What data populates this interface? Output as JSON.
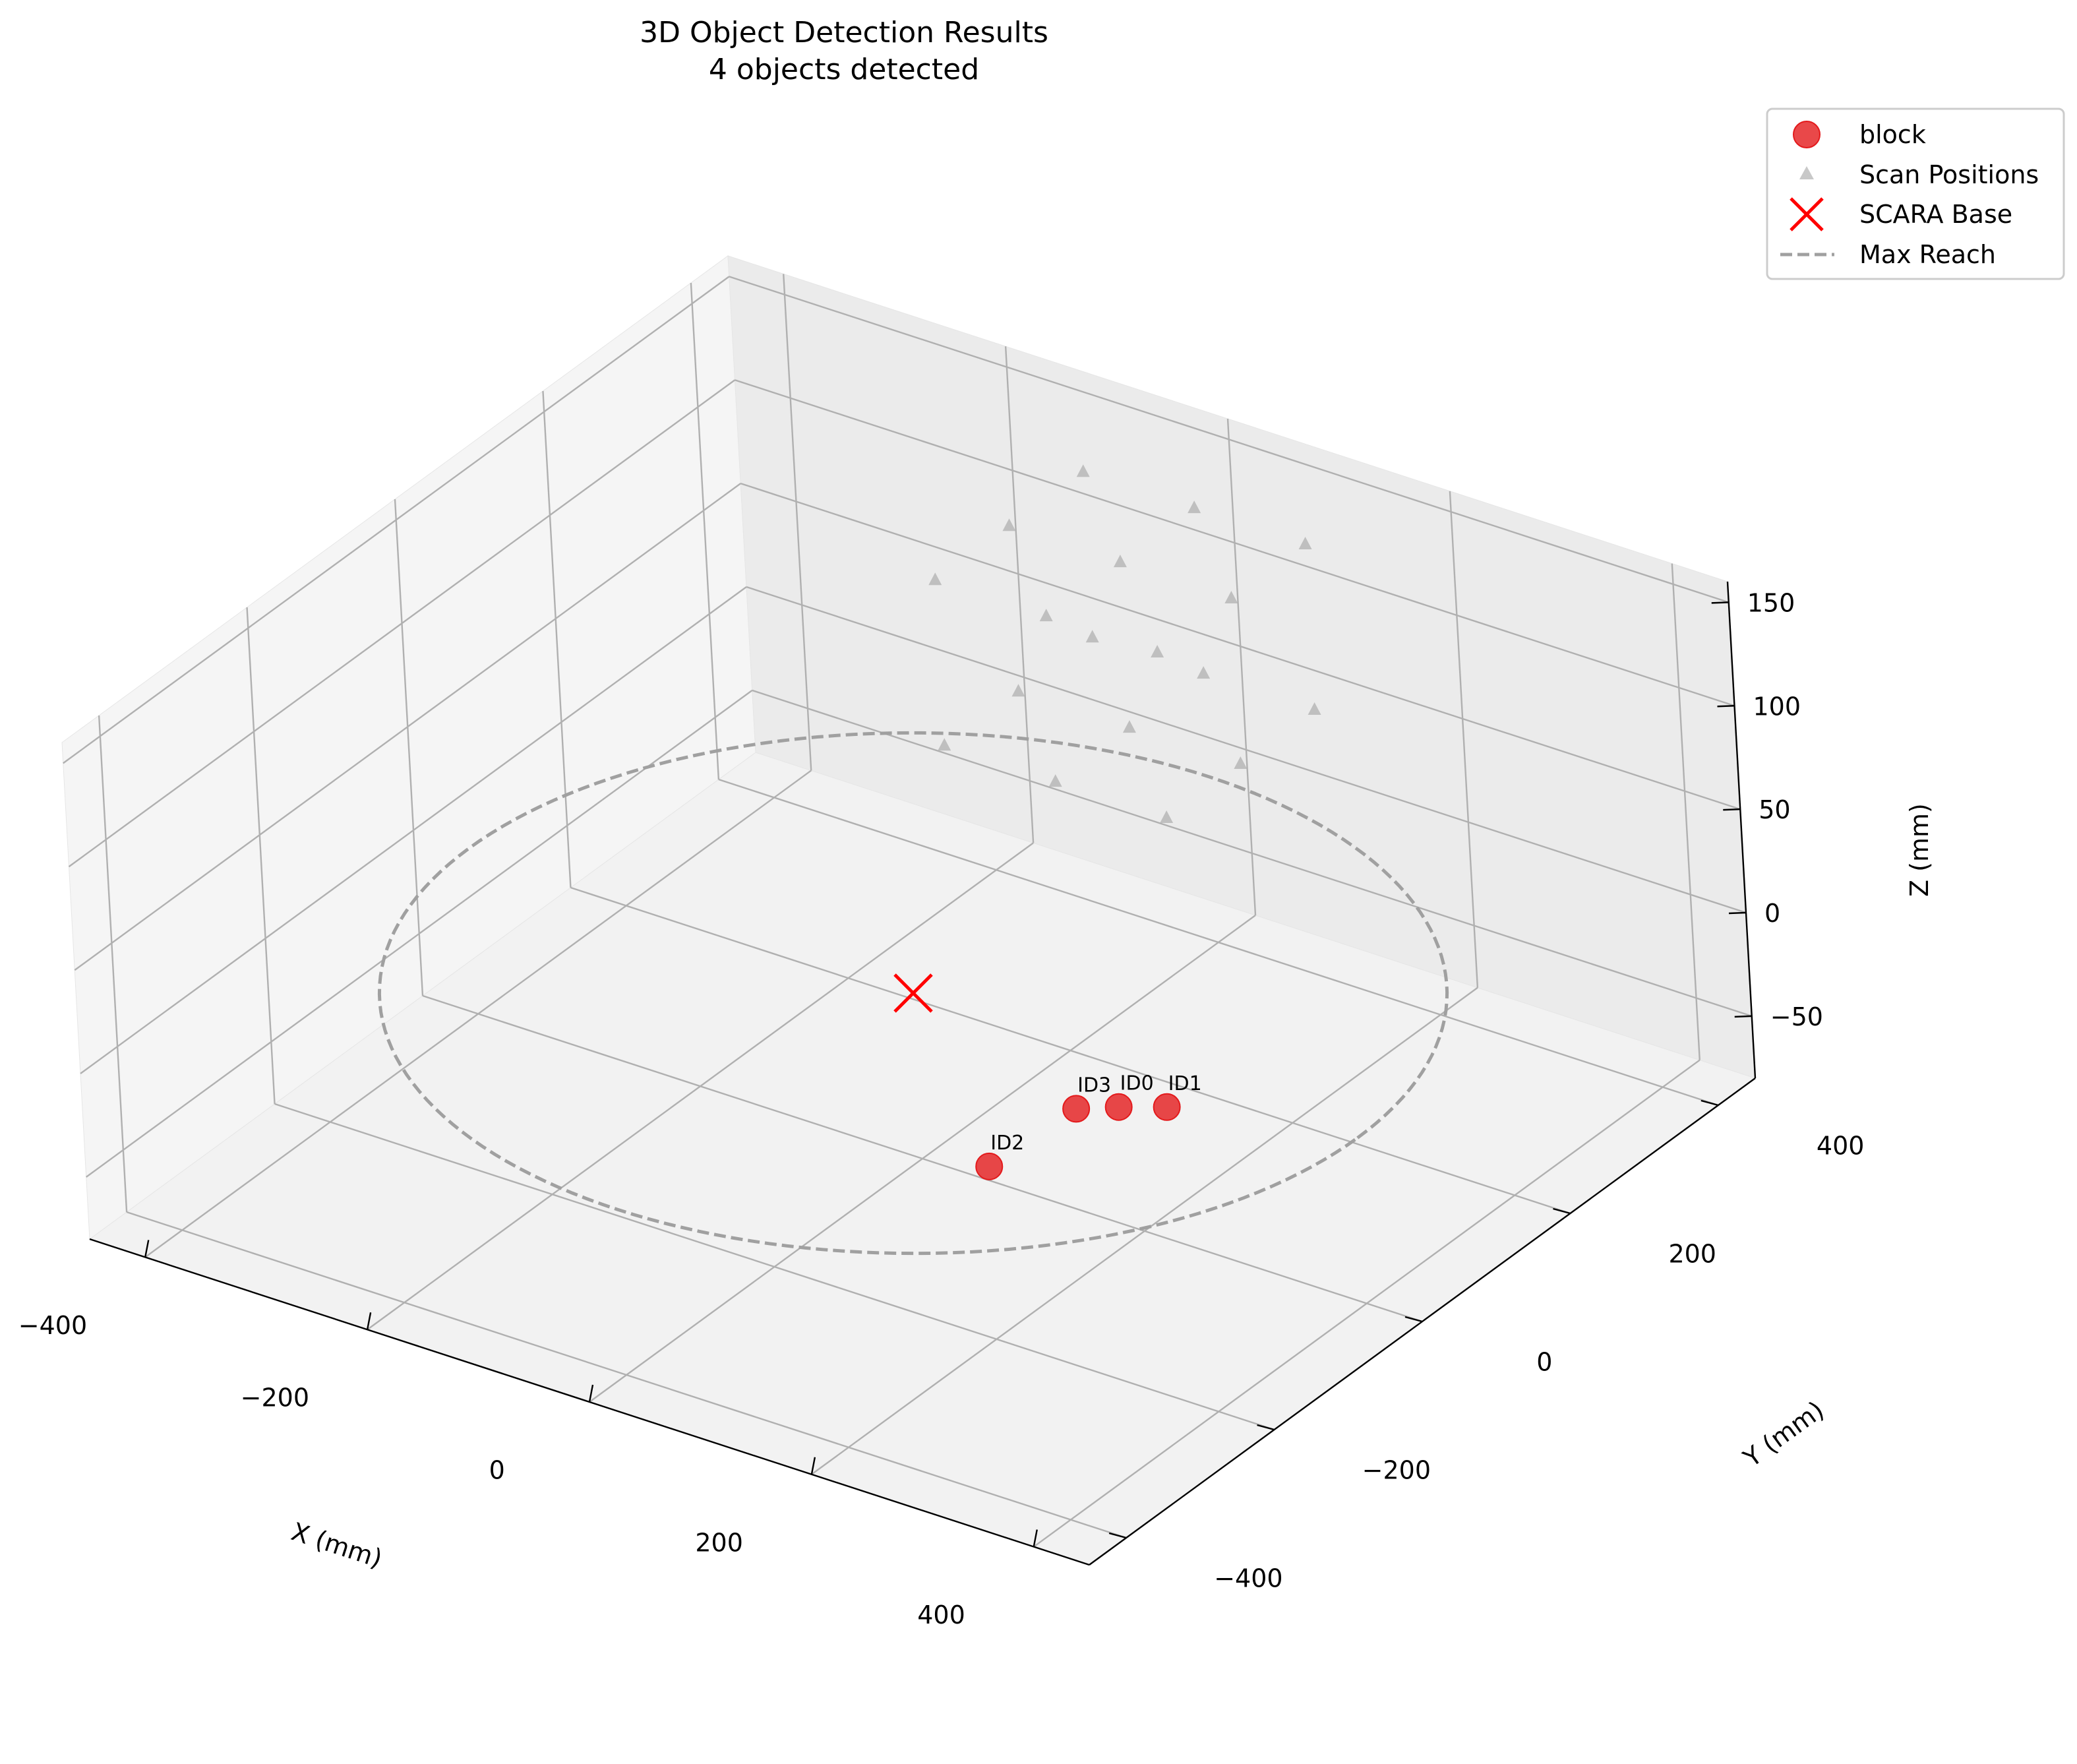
{
  "chart_data": {
    "type": "scatter",
    "projection": "3d",
    "title": "3D Object Detection Results",
    "subtitle": "4 objects detected",
    "xlabel": "X (mm)",
    "ylabel": "Y (mm)",
    "zlabel": "Z (mm)",
    "xlim": [
      -450,
      450
    ],
    "ylim": [
      -450,
      450
    ],
    "zlim": [
      -80,
      160
    ],
    "xticks": [
      -400,
      -200,
      0,
      200,
      400
    ],
    "yticks": [
      -400,
      -200,
      0,
      200,
      400
    ],
    "zticks": [
      -50,
      0,
      50,
      100,
      150
    ],
    "xtick_labels": [
      "−400",
      "−200",
      "0",
      "200",
      "400"
    ],
    "ytick_labels": [
      "−400",
      "−200",
      "0",
      "200",
      "400"
    ],
    "ztick_labels": [
      "−50",
      "0",
      "50",
      "100",
      "150"
    ],
    "grid": true,
    "legend_position": "top-right, outside axes",
    "series": [
      {
        "name": "block",
        "marker": "circle",
        "color": "#e31a1c",
        "points": [
          {
            "label": "ID0",
            "x": 225,
            "y": -60,
            "z": 0
          },
          {
            "label": "ID1",
            "x": 255,
            "y": -40,
            "z": 0
          },
          {
            "label": "ID2",
            "x": 195,
            "y": -190,
            "z": 0
          },
          {
            "label": "ID3",
            "x": 200,
            "y": -80,
            "z": 0
          }
        ]
      },
      {
        "name": "Scan Positions",
        "marker": "triangle",
        "color": "#b0b0b0",
        "points": [
          {
            "x": -100,
            "y": 200,
            "z": 50
          },
          {
            "x": 0,
            "y": 200,
            "z": 50
          },
          {
            "x": 100,
            "y": 200,
            "z": 50
          },
          {
            "x": -100,
            "y": 300,
            "z": 50
          },
          {
            "x": 0,
            "y": 300,
            "z": 50
          },
          {
            "x": 100,
            "y": 300,
            "z": 50
          },
          {
            "x": -100,
            "y": 400,
            "z": 50
          },
          {
            "x": 0,
            "y": 400,
            "z": 50
          },
          {
            "x": 100,
            "y": 400,
            "z": 50
          },
          {
            "x": -100,
            "y": 200,
            "z": 130
          },
          {
            "x": 0,
            "y": 200,
            "z": 130
          },
          {
            "x": 100,
            "y": 200,
            "z": 130
          },
          {
            "x": -100,
            "y": 300,
            "z": 130
          },
          {
            "x": 0,
            "y": 300,
            "z": 130
          },
          {
            "x": 100,
            "y": 300,
            "z": 130
          },
          {
            "x": 0,
            "y": 400,
            "z": 130
          },
          {
            "x": 100,
            "y": 400,
            "z": 130
          },
          {
            "x": -100,
            "y": 400,
            "z": 130
          }
        ]
      },
      {
        "name": "SCARA Base",
        "marker": "x",
        "color": "#ff0000",
        "points": [
          {
            "x": 0,
            "y": 0,
            "z": 0
          }
        ]
      },
      {
        "name": "Max Reach",
        "marker": "dashed-line",
        "color": "#a0a0a0",
        "circle": {
          "cx": 0,
          "cy": 0,
          "z": 0,
          "radius": 400
        }
      }
    ]
  }
}
